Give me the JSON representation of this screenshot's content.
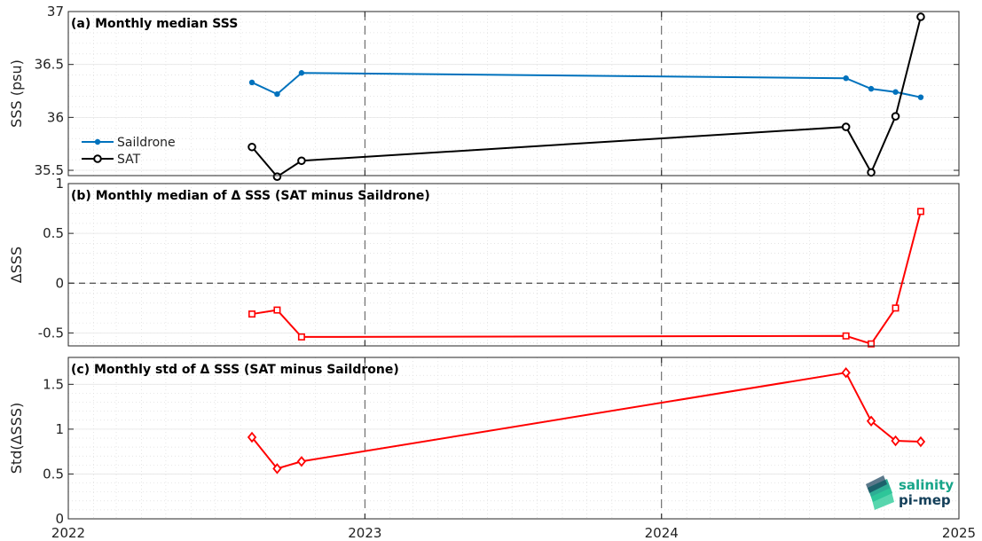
{
  "chart_data": [
    {
      "type": "line",
      "title": "(a) Monthly median SSS",
      "ylabel": "SSS (psu)",
      "ylim": [
        35.45,
        37.0
      ],
      "yticks": [
        35.5,
        36,
        36.5,
        37
      ],
      "ytick_labels": [
        "35.5",
        "36",
        "36.5",
        "37"
      ],
      "legend_position": "left",
      "series": [
        {
          "name": "Saildrone",
          "color": "#0072BD",
          "marker": "dot",
          "points": [
            [
              "2022-08-15",
              36.33
            ],
            [
              "2022-09-15",
              36.22
            ],
            [
              "2022-10-15",
              36.42
            ],
            [
              "2024-08-15",
              36.37
            ],
            [
              "2024-09-15",
              36.27
            ],
            [
              "2024-10-15",
              36.24
            ],
            [
              "2024-11-15",
              36.19
            ]
          ]
        },
        {
          "name": "SAT",
          "color": "#000000",
          "marker": "circle",
          "points": [
            [
              "2022-08-15",
              35.72
            ],
            [
              "2022-09-15",
              35.44
            ],
            [
              "2022-10-15",
              35.59
            ],
            [
              "2024-08-15",
              35.91
            ],
            [
              "2024-09-15",
              35.48
            ],
            [
              "2024-10-15",
              36.01
            ],
            [
              "2024-11-15",
              36.95
            ]
          ]
        }
      ]
    },
    {
      "type": "line",
      "title": "(b) Monthly median of Δ SSS (SAT minus Saildrone)",
      "ylabel": "ΔSSS",
      "ylim": [
        -0.63,
        1.0
      ],
      "yticks": [
        -0.5,
        0,
        0.5,
        1
      ],
      "ytick_labels": [
        "-0.5",
        "0",
        "0.5",
        "1"
      ],
      "zero_line": true,
      "series": [
        {
          "color": "#FF0000",
          "marker": "square",
          "points": [
            [
              "2022-08-15",
              -0.31
            ],
            [
              "2022-09-15",
              -0.27
            ],
            [
              "2022-10-15",
              -0.54
            ],
            [
              "2024-08-15",
              -0.53
            ],
            [
              "2024-09-15",
              -0.61
            ],
            [
              "2024-10-15",
              -0.25
            ],
            [
              "2024-11-15",
              0.72
            ]
          ]
        }
      ]
    },
    {
      "type": "line",
      "title": "(c) Monthly std of Δ SSS (SAT minus Saildrone)",
      "ylabel": "Std(ΔSSS)",
      "ylim": [
        0,
        1.8
      ],
      "yticks": [
        0,
        0.5,
        1,
        1.5
      ],
      "ytick_labels": [
        "0",
        "0.5",
        "1",
        "1.5"
      ],
      "series": [
        {
          "color": "#FF0000",
          "marker": "diamond",
          "points": [
            [
              "2022-08-15",
              0.91
            ],
            [
              "2022-09-15",
              0.56
            ],
            [
              "2022-10-15",
              0.64
            ],
            [
              "2024-08-15",
              1.63
            ],
            [
              "2024-09-15",
              1.09
            ],
            [
              "2024-10-15",
              0.87
            ],
            [
              "2024-11-15",
              0.86
            ]
          ]
        }
      ]
    }
  ],
  "x_axis": {
    "ticks": [
      {
        "date": "2022-01-01",
        "label": "2022"
      },
      {
        "date": "2023-01-01",
        "label": "2023"
      },
      {
        "date": "2024-01-01",
        "label": "2024"
      },
      {
        "date": "2025-01-01",
        "label": "2025"
      }
    ],
    "range": [
      "2022-01-01",
      "2025-01-01"
    ],
    "dashed_year_lines": [
      "2023-01-01",
      "2024-01-01"
    ]
  },
  "grid": true,
  "logo": {
    "line1": "salinity",
    "line2": "pi-mep",
    "color1": "#17a589",
    "color2": "#15405a"
  }
}
